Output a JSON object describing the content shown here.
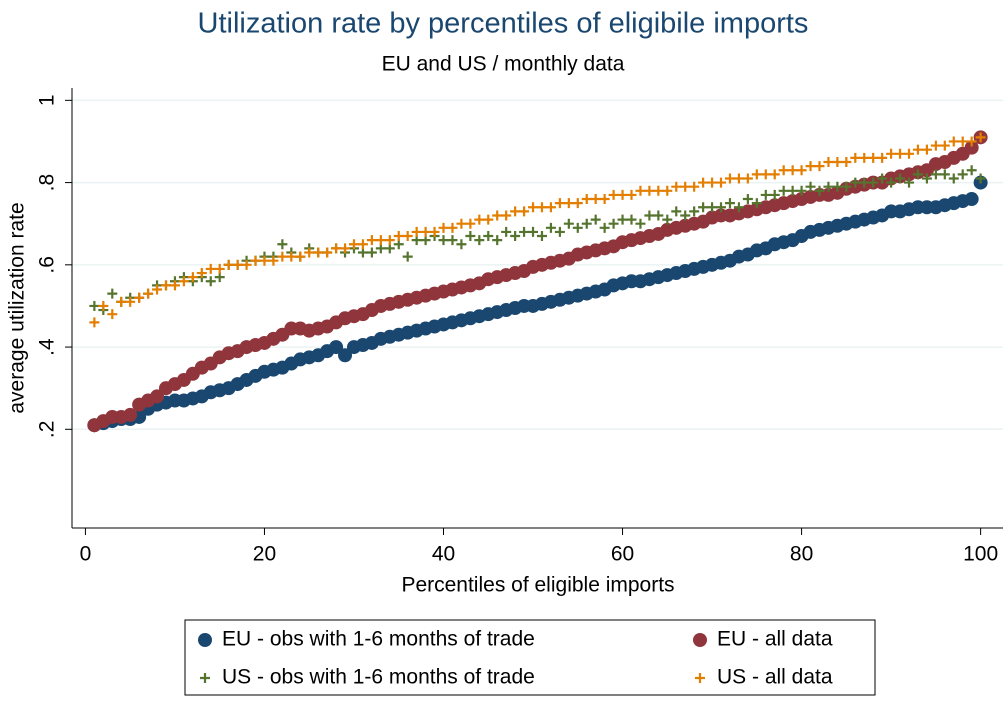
{
  "chart_data": {
    "type": "scatter",
    "title": "Utilization rate by percentiles of eligibile imports",
    "subtitle": "EU and US / monthly data",
    "x_label": "Percentiles of eligible imports",
    "y_label": "average utilization rate",
    "xlim": [
      -1.5,
      102.5
    ],
    "ylim": [
      -0.04,
      1.03
    ],
    "xticks": [
      0,
      20,
      40,
      60,
      80,
      100
    ],
    "yticks": [
      {
        "value": 0.2,
        "label": ".2"
      },
      {
        "value": 0.4,
        "label": ".4"
      },
      {
        "value": 0.6,
        "label": ".6"
      },
      {
        "value": 0.8,
        "label": ".8"
      },
      1
    ],
    "grid": true,
    "legend": {
      "position": "bottom",
      "columns": 2
    },
    "x": [
      1,
      2,
      3,
      4,
      5,
      6,
      7,
      8,
      9,
      10,
      11,
      12,
      13,
      14,
      15,
      16,
      17,
      18,
      19,
      20,
      21,
      22,
      23,
      24,
      25,
      26,
      27,
      28,
      29,
      30,
      31,
      32,
      33,
      34,
      35,
      36,
      37,
      38,
      39,
      40,
      41,
      42,
      43,
      44,
      45,
      46,
      47,
      48,
      49,
      50,
      51,
      52,
      53,
      54,
      55,
      56,
      57,
      58,
      59,
      60,
      61,
      62,
      63,
      64,
      65,
      66,
      67,
      68,
      69,
      70,
      71,
      72,
      73,
      74,
      75,
      76,
      77,
      78,
      79,
      80,
      81,
      82,
      83,
      84,
      85,
      86,
      87,
      88,
      89,
      90,
      91,
      92,
      93,
      94,
      95,
      96,
      97,
      98,
      99,
      100
    ],
    "series": [
      {
        "name": "EU - obs with 1-6 months of trade",
        "color": "#1a476f",
        "marker": "circle",
        "values": [
          0.21,
          0.215,
          0.22,
          0.225,
          0.225,
          0.23,
          0.25,
          0.26,
          0.265,
          0.27,
          0.27,
          0.275,
          0.28,
          0.29,
          0.295,
          0.3,
          0.31,
          0.32,
          0.33,
          0.34,
          0.345,
          0.35,
          0.36,
          0.37,
          0.375,
          0.38,
          0.39,
          0.4,
          0.38,
          0.4,
          0.405,
          0.41,
          0.42,
          0.425,
          0.43,
          0.435,
          0.44,
          0.445,
          0.45,
          0.455,
          0.46,
          0.465,
          0.47,
          0.475,
          0.48,
          0.485,
          0.49,
          0.495,
          0.5,
          0.5,
          0.505,
          0.51,
          0.515,
          0.52,
          0.525,
          0.53,
          0.535,
          0.54,
          0.55,
          0.555,
          0.56,
          0.56,
          0.565,
          0.57,
          0.575,
          0.58,
          0.585,
          0.59,
          0.595,
          0.6,
          0.605,
          0.61,
          0.62,
          0.625,
          0.635,
          0.64,
          0.65,
          0.655,
          0.66,
          0.67,
          0.68,
          0.685,
          0.69,
          0.695,
          0.7,
          0.705,
          0.71,
          0.715,
          0.72,
          0.73,
          0.73,
          0.735,
          0.74,
          0.74,
          0.74,
          0.745,
          0.75,
          0.755,
          0.76,
          0.8
        ]
      },
      {
        "name": "EU - all data",
        "color": "#90353b",
        "marker": "circle",
        "values": [
          0.21,
          0.22,
          0.23,
          0.23,
          0.235,
          0.26,
          0.27,
          0.28,
          0.3,
          0.31,
          0.32,
          0.335,
          0.35,
          0.36,
          0.375,
          0.385,
          0.39,
          0.4,
          0.405,
          0.41,
          0.42,
          0.43,
          0.445,
          0.445,
          0.44,
          0.445,
          0.45,
          0.46,
          0.47,
          0.475,
          0.48,
          0.49,
          0.5,
          0.505,
          0.51,
          0.515,
          0.52,
          0.525,
          0.53,
          0.535,
          0.54,
          0.545,
          0.55,
          0.555,
          0.565,
          0.57,
          0.575,
          0.58,
          0.585,
          0.595,
          0.6,
          0.605,
          0.61,
          0.615,
          0.625,
          0.63,
          0.635,
          0.64,
          0.645,
          0.655,
          0.66,
          0.665,
          0.67,
          0.675,
          0.685,
          0.69,
          0.695,
          0.7,
          0.705,
          0.715,
          0.72,
          0.72,
          0.725,
          0.73,
          0.735,
          0.74,
          0.745,
          0.75,
          0.755,
          0.76,
          0.765,
          0.77,
          0.77,
          0.775,
          0.785,
          0.79,
          0.795,
          0.8,
          0.8,
          0.81,
          0.815,
          0.82,
          0.825,
          0.83,
          0.845,
          0.85,
          0.86,
          0.87,
          0.885,
          0.91
        ]
      },
      {
        "name": "US - obs with 1-6 months of trade",
        "color": "#55752f",
        "marker": "plus",
        "values": [
          0.5,
          0.49,
          0.53,
          0.51,
          0.52,
          0.52,
          0.53,
          0.55,
          0.55,
          0.56,
          0.57,
          0.56,
          0.57,
          0.56,
          0.57,
          0.6,
          0.6,
          0.61,
          0.61,
          0.62,
          0.62,
          0.65,
          0.63,
          0.62,
          0.64,
          0.63,
          0.63,
          0.64,
          0.63,
          0.64,
          0.63,
          0.63,
          0.64,
          0.64,
          0.65,
          0.62,
          0.66,
          0.66,
          0.67,
          0.66,
          0.66,
          0.65,
          0.67,
          0.66,
          0.67,
          0.66,
          0.68,
          0.67,
          0.68,
          0.68,
          0.67,
          0.69,
          0.68,
          0.7,
          0.69,
          0.7,
          0.71,
          0.69,
          0.7,
          0.71,
          0.71,
          0.7,
          0.72,
          0.72,
          0.71,
          0.73,
          0.72,
          0.73,
          0.74,
          0.74,
          0.74,
          0.75,
          0.74,
          0.76,
          0.75,
          0.77,
          0.77,
          0.78,
          0.78,
          0.78,
          0.79,
          0.78,
          0.79,
          0.79,
          0.79,
          0.8,
          0.8,
          0.8,
          0.81,
          0.8,
          0.81,
          0.8,
          0.82,
          0.81,
          0.82,
          0.82,
          0.81,
          0.82,
          0.83,
          0.81
        ]
      },
      {
        "name": "US - all data",
        "color": "#e37e00",
        "marker": "plus",
        "values": [
          0.46,
          0.5,
          0.48,
          0.51,
          0.51,
          0.52,
          0.53,
          0.54,
          0.55,
          0.55,
          0.56,
          0.57,
          0.58,
          0.59,
          0.59,
          0.6,
          0.6,
          0.6,
          0.61,
          0.61,
          0.61,
          0.62,
          0.62,
          0.62,
          0.63,
          0.63,
          0.63,
          0.64,
          0.64,
          0.65,
          0.65,
          0.66,
          0.66,
          0.66,
          0.67,
          0.67,
          0.68,
          0.68,
          0.68,
          0.69,
          0.69,
          0.7,
          0.7,
          0.71,
          0.71,
          0.72,
          0.72,
          0.73,
          0.73,
          0.74,
          0.74,
          0.74,
          0.75,
          0.75,
          0.75,
          0.76,
          0.76,
          0.76,
          0.77,
          0.77,
          0.77,
          0.78,
          0.78,
          0.78,
          0.78,
          0.79,
          0.79,
          0.79,
          0.8,
          0.8,
          0.8,
          0.81,
          0.81,
          0.81,
          0.82,
          0.82,
          0.82,
          0.83,
          0.83,
          0.83,
          0.84,
          0.84,
          0.85,
          0.85,
          0.85,
          0.86,
          0.86,
          0.86,
          0.86,
          0.87,
          0.87,
          0.87,
          0.88,
          0.88,
          0.89,
          0.89,
          0.9,
          0.9,
          0.9,
          0.91
        ]
      }
    ]
  }
}
